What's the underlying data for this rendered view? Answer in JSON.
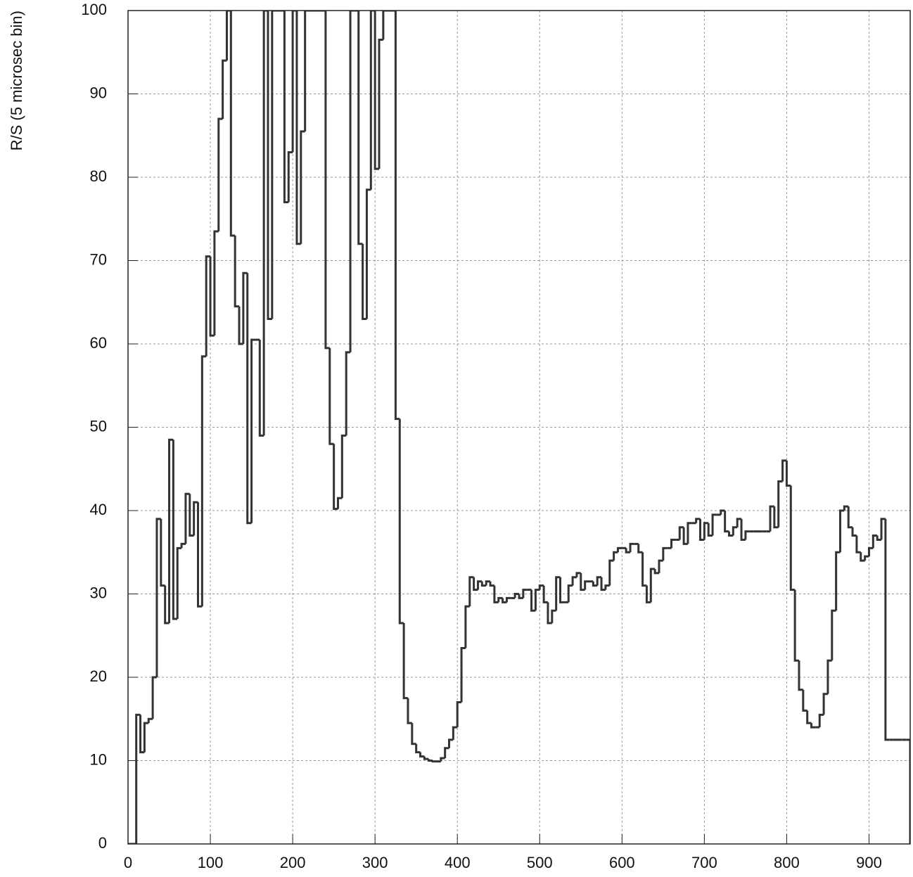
{
  "chart_data": {
    "type": "histogram",
    "ylabel": "R/S (5 microsec bin)",
    "bins": [
      0,
      5,
      10,
      15,
      20,
      25,
      30,
      35,
      40,
      45,
      50,
      55,
      60,
      65,
      70,
      75,
      80,
      85,
      90,
      95,
      100,
      105,
      110,
      115,
      120,
      125,
      130,
      135,
      140,
      145,
      150,
      155,
      160,
      165,
      170,
      175,
      180,
      185,
      190,
      195,
      200,
      205,
      210,
      215,
      220,
      225,
      230,
      235,
      240,
      245,
      250,
      255,
      260,
      265,
      270,
      275,
      280,
      285,
      290,
      295,
      300,
      305,
      310,
      315,
      320,
      325,
      330,
      335,
      340,
      345,
      350,
      355,
      360,
      365,
      370,
      375,
      380,
      385,
      390,
      395,
      400,
      405,
      410,
      415,
      420,
      425,
      430,
      435,
      440,
      445,
      450,
      455,
      460,
      465,
      470,
      475,
      480,
      485,
      490,
      495,
      500,
      505,
      510,
      515,
      520,
      525,
      530,
      535,
      540,
      545,
      550,
      555,
      560,
      565,
      570,
      575,
      580,
      585,
      590,
      595,
      600,
      605,
      610,
      615,
      620,
      625,
      630,
      635,
      640,
      645,
      650,
      655,
      660,
      665,
      670,
      675,
      680,
      685,
      690,
      695,
      700,
      705,
      710,
      715,
      720,
      725,
      730,
      735,
      740,
      745,
      750,
      755,
      760,
      765,
      770,
      775,
      780,
      785,
      790,
      795,
      800,
      805,
      810,
      815,
      820,
      825,
      830,
      835,
      840,
      845,
      850,
      855,
      860,
      865,
      870,
      875,
      880,
      885,
      890,
      895,
      900,
      905,
      910,
      915,
      920,
      925,
      930,
      935,
      940,
      945,
      950
    ],
    "values": [
      0,
      0,
      15.5,
      11,
      14.5,
      15,
      20,
      39,
      31,
      26.5,
      48.5,
      27,
      35.5,
      36,
      42,
      37,
      41,
      28.5,
      58.5,
      70.5,
      61,
      73.5,
      87,
      94,
      100,
      73,
      64.5,
      60,
      68.5,
      38.5,
      60.5,
      60.5,
      49,
      100,
      63,
      100,
      100,
      100,
      77,
      83,
      100,
      72,
      85.5,
      100,
      100,
      100,
      100,
      100,
      59.5,
      48,
      40.2,
      41.5,
      49,
      59,
      100,
      100,
      72,
      63,
      78.5,
      100,
      81,
      96.5,
      100,
      100,
      100,
      51,
      26.5,
      17.5,
      14.5,
      12,
      11,
      10.5,
      10.2,
      10,
      9.9,
      9.9,
      10.3,
      11.5,
      12.5,
      14,
      17,
      23.5,
      28.5,
      32,
      30.5,
      31.5,
      31,
      31.5,
      31,
      29,
      29.5,
      29,
      29.5,
      29.5,
      30,
      29.5,
      30.5,
      30.5,
      28,
      30.5,
      31,
      29,
      26.5,
      28,
      32,
      29,
      29,
      31,
      32,
      32.5,
      30.5,
      31.5,
      31.5,
      31,
      32,
      30.5,
      31,
      34,
      35,
      35.5,
      35.5,
      35,
      36,
      36,
      35,
      31,
      29,
      33,
      32.5,
      34,
      35.5,
      35.5,
      36.5,
      36.5,
      38,
      36,
      38.5,
      38.5,
      39,
      36.5,
      38.5,
      37,
      39.5,
      39.5,
      40,
      37.5,
      37,
      38,
      39,
      36.5,
      37.5,
      37.5,
      37.5,
      37.5,
      37.5,
      37.5,
      40.5,
      38,
      43.5,
      46,
      43,
      30.5,
      22,
      18.5,
      16,
      14.5,
      14,
      14,
      15.5,
      18,
      22,
      28,
      35,
      40,
      40.5,
      38,
      37,
      35,
      34,
      34.5,
      35.5,
      37,
      36.5,
      39,
      12.5,
      12.5,
      12.5,
      12.5,
      12.5,
      12.5
    ],
    "color": "#333333",
    "xlim": [
      0,
      950
    ],
    "ylim": [
      0,
      100
    ],
    "xticks": [
      0,
      100,
      200,
      300,
      400,
      500,
      600,
      700,
      800,
      900
    ],
    "yticks": [
      0,
      10,
      20,
      30,
      40,
      50,
      60,
      70,
      80,
      90,
      100
    ],
    "grid": true
  }
}
